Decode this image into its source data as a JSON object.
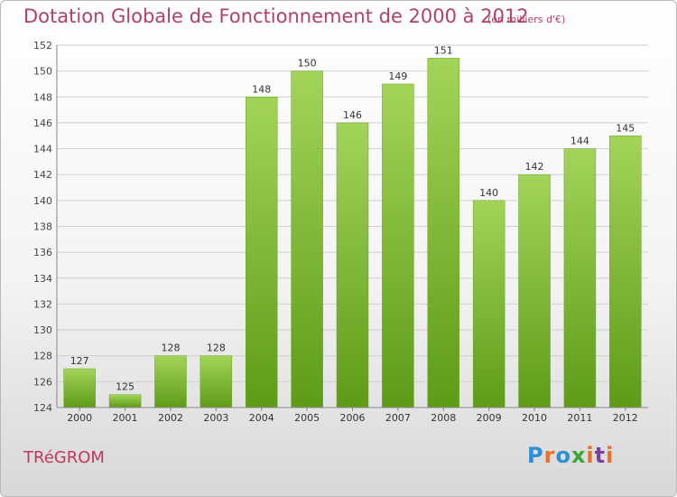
{
  "header": {
    "title": "Dotation Globale de Fonctionnement de 2000 à 2012",
    "subtitle": "(en milliers d'€)"
  },
  "footer": {
    "commune": "TRéGROM",
    "logo_text": "Proxiti",
    "logo_colors": [
      "#2f8fd6",
      "#e8712a",
      "#2f8fd6",
      "#3aa635",
      "#e8712a",
      "#7b3fa0",
      "#e8712a"
    ]
  },
  "colors": {
    "title": "#b3406a",
    "bar_top": "#a3d45a",
    "bar_bottom": "#5e9b17",
    "grid": "#d0d0d0"
  },
  "chart_data": {
    "type": "bar",
    "categories": [
      "2000",
      "2001",
      "2002",
      "2003",
      "2004",
      "2005",
      "2006",
      "2007",
      "2008",
      "2009",
      "2010",
      "2011",
      "2012"
    ],
    "values": [
      127,
      125,
      128,
      128,
      148,
      150,
      146,
      149,
      151,
      140,
      142,
      144,
      145
    ],
    "title": "Dotation Globale de Fonctionnement de 2000 à 2012",
    "subtitle": "(en milliers d'€)",
    "ylim": [
      124,
      152
    ],
    "yticks": [
      124,
      126,
      128,
      130,
      132,
      134,
      136,
      138,
      140,
      142,
      144,
      146,
      148,
      150,
      152
    ],
    "grid": true,
    "data_labels": true
  }
}
